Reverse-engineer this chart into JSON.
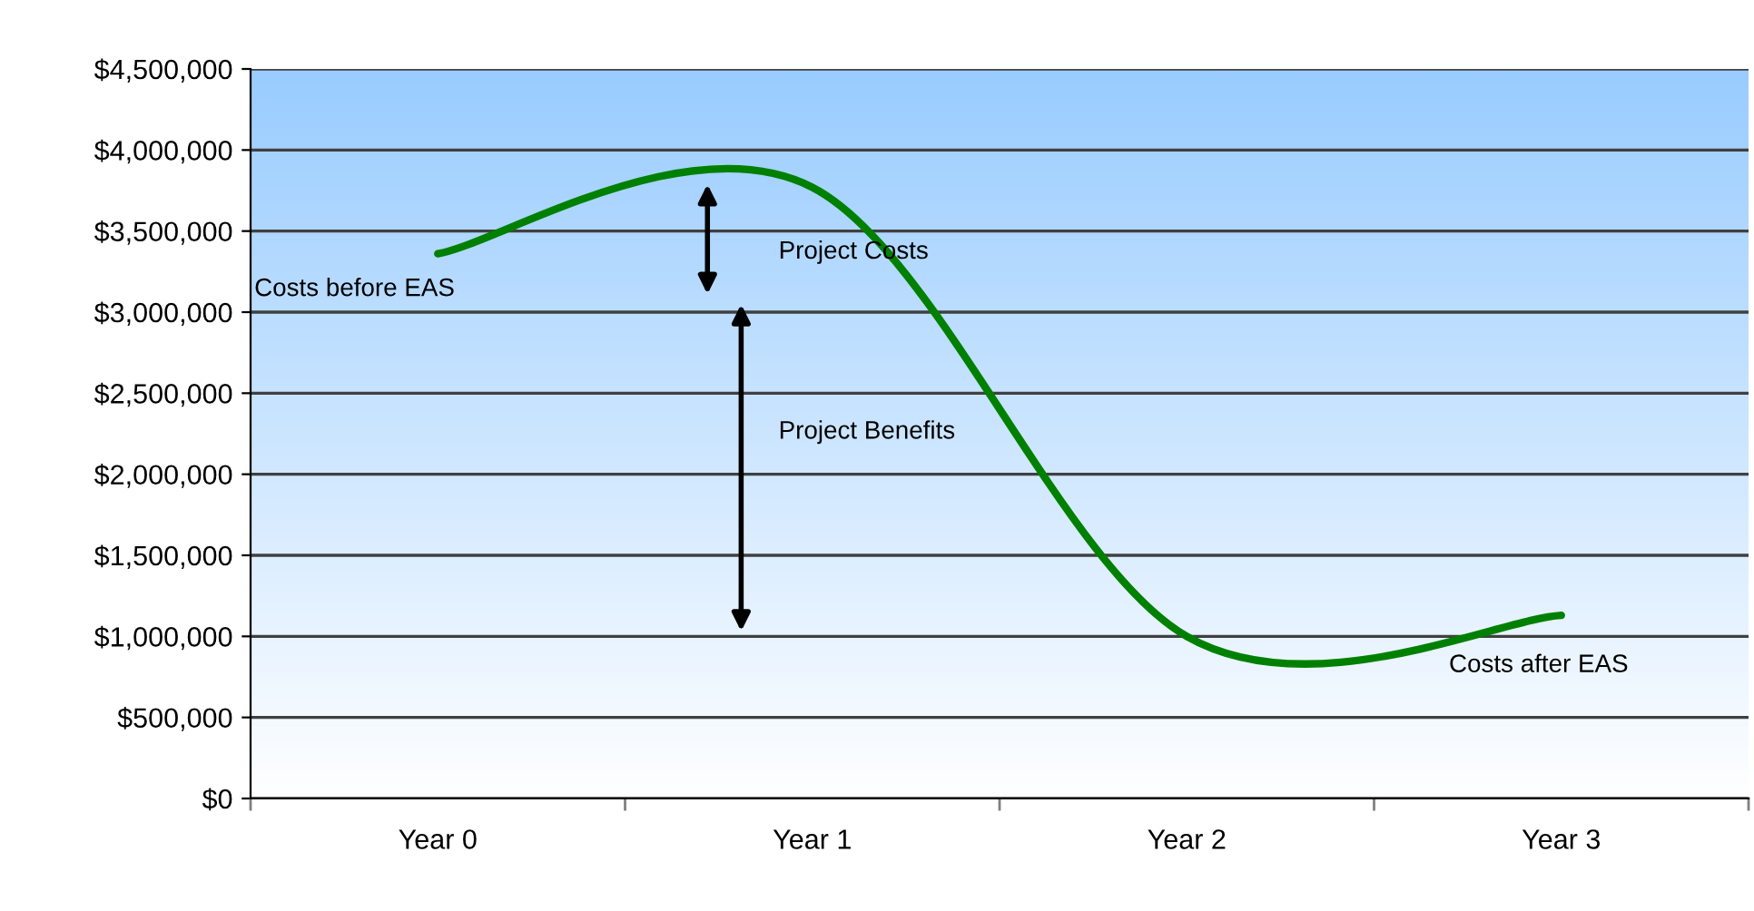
{
  "chart_data": {
    "type": "line",
    "categories": [
      "Year 0",
      "Year 1",
      "Year 2",
      "Year 3"
    ],
    "series": [
      {
        "color": "#008000",
        "values": [
          3360000,
          3770000,
          1000000,
          1130000
        ]
      }
    ],
    "ylim": [
      0,
      4500000
    ],
    "yticks": [
      {
        "value": 0,
        "label": "$0"
      },
      {
        "value": 500000,
        "label": "$500,000"
      },
      {
        "value": 1000000,
        "label": "$1,000,000"
      },
      {
        "value": 1500000,
        "label": "$1,500,000"
      },
      {
        "value": 2000000,
        "label": "$2,000,000"
      },
      {
        "value": 2500000,
        "label": "$2,500,000"
      },
      {
        "value": 3000000,
        "label": "$3,000,000"
      },
      {
        "value": 3500000,
        "label": "$3,500,000"
      },
      {
        "value": 4000000,
        "label": "$4,000,000"
      },
      {
        "value": 4500000,
        "label": "$4,500,000"
      }
    ],
    "grid": "y",
    "legend": false,
    "marker": "none",
    "line_style": "solid",
    "annotations": [
      "Costs before EAS",
      "Project Costs",
      "Project Benefits",
      "Costs after EAS"
    ]
  }
}
